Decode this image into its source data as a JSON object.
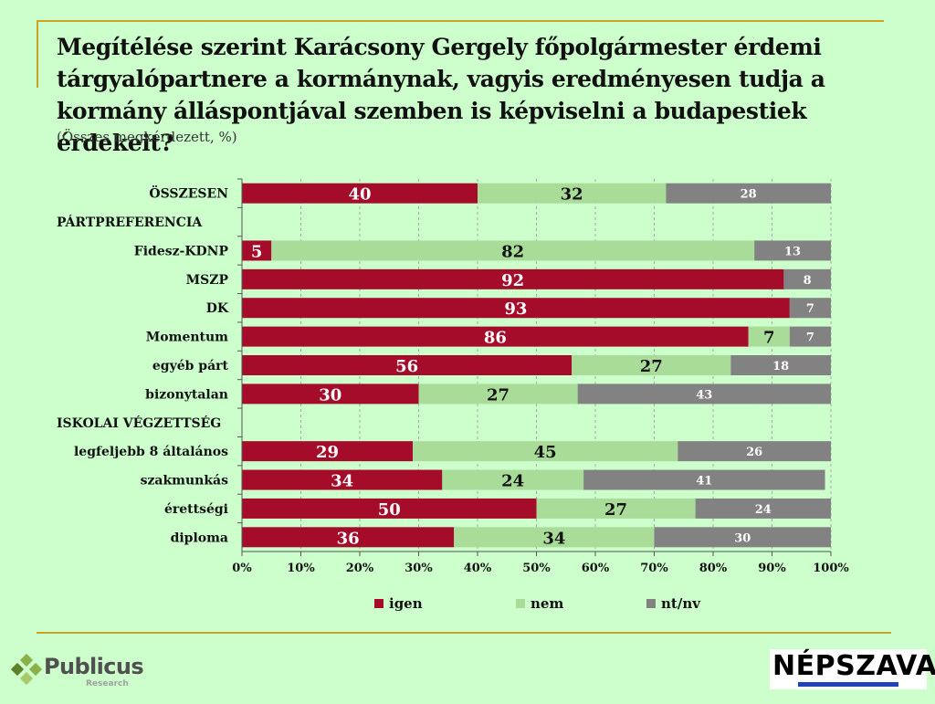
{
  "header": {
    "title": "Megítélése szerint Karácsony Gergely főpolgármester érdemi tárgyalópartnere a kormánynak, vagyis eredményesen tudja a kormány álláspontjával szemben is képviselni a budapestiek érdekeit?",
    "subtitle": "(Összes megkérdezett, %)"
  },
  "colors": {
    "igen": "#a50c2a",
    "nem": "#a8dc98",
    "ntnv": "#828282",
    "background": "#ccffcc",
    "rule": "#c9a227"
  },
  "chart_data": {
    "type": "bar",
    "orientation": "horizontal",
    "stacked": true,
    "xlim": [
      0,
      100
    ],
    "xticks": [
      "0%",
      "10%",
      "20%",
      "30%",
      "40%",
      "50%",
      "60%",
      "70%",
      "80%",
      "90%",
      "100%"
    ],
    "legend": [
      {
        "key": "igen",
        "label": "igen"
      },
      {
        "key": "nem",
        "label": "nem"
      },
      {
        "key": "ntnv",
        "label": "nt/nv"
      }
    ],
    "rows": [
      {
        "label": "ÖSSZESEN",
        "values": [
          40,
          32,
          28
        ]
      },
      {
        "label": "PÁRTPREFERENCIA",
        "header": true
      },
      {
        "label": "Fidesz-KDNP",
        "values": [
          5,
          82,
          13
        ]
      },
      {
        "label": "MSZP",
        "values": [
          92,
          null,
          8
        ]
      },
      {
        "label": "DK",
        "values": [
          93,
          null,
          7
        ]
      },
      {
        "label": "Momentum",
        "values": [
          86,
          7,
          7
        ]
      },
      {
        "label": "egyéb párt",
        "values": [
          56,
          27,
          18
        ]
      },
      {
        "label": "bizonytalan",
        "values": [
          30,
          27,
          43
        ]
      },
      {
        "label": "ISKOLAI VÉGZETTSÉG",
        "header": true
      },
      {
        "label": "legfeljebb 8 általános",
        "values": [
          29,
          45,
          26
        ]
      },
      {
        "label": "szakmunkás",
        "values": [
          34,
          24,
          41
        ]
      },
      {
        "label": "érettségi",
        "values": [
          50,
          27,
          24
        ]
      },
      {
        "label": "diploma",
        "values": [
          36,
          34,
          30
        ]
      }
    ]
  },
  "footer": {
    "left_logo_name": "Publicus",
    "left_logo_sub": "Research",
    "right_logo_name": "NÉPSZAVA"
  }
}
